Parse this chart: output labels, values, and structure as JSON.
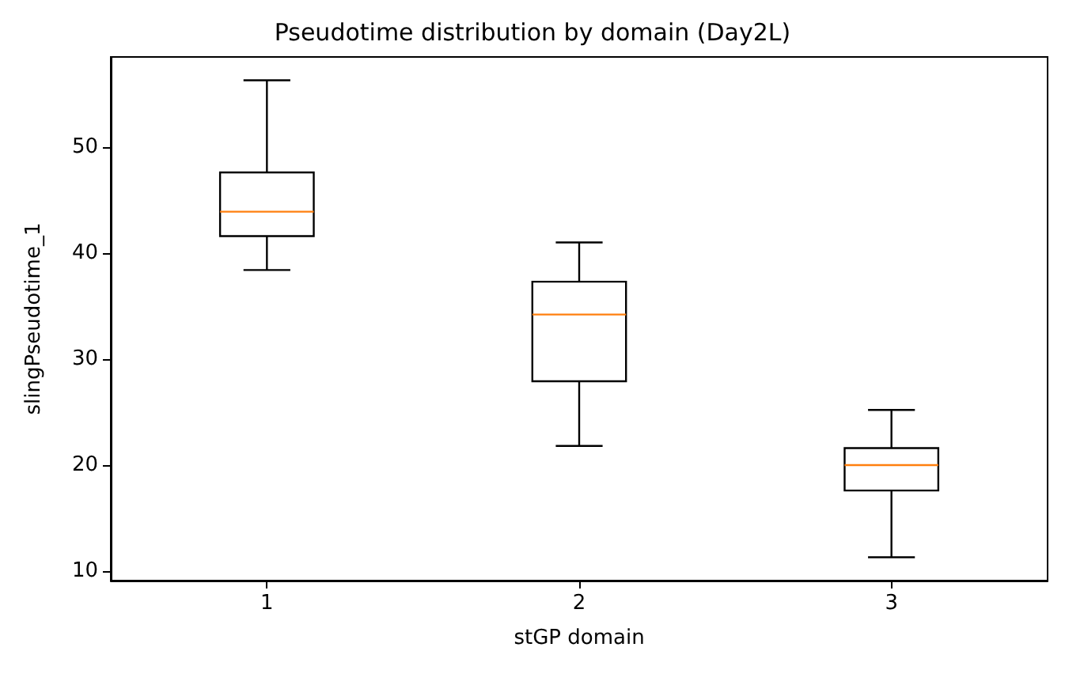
{
  "chart_data": {
    "type": "box",
    "title": "Pseudotime distribution by domain (Day2L)",
    "xlabel": "stGP domain",
    "ylabel": "slingPseudotime_1",
    "categories": [
      "1",
      "2",
      "3"
    ],
    "series": [
      {
        "color": "#000000",
        "boxes": [
          {
            "low": 38.4,
            "q1": 41.6,
            "median": 43.9,
            "q3": 47.6,
            "high": 56.3
          },
          {
            "low": 21.8,
            "q1": 27.9,
            "median": 34.2,
            "q3": 37.3,
            "high": 41.0
          },
          {
            "low": 11.3,
            "q1": 17.6,
            "median": 20.0,
            "q3": 21.6,
            "high": 25.2
          }
        ]
      }
    ],
    "ylim": [
      9.1,
      58.5
    ],
    "yticks": [
      10,
      20,
      30,
      40,
      50
    ],
    "grid": false
  }
}
